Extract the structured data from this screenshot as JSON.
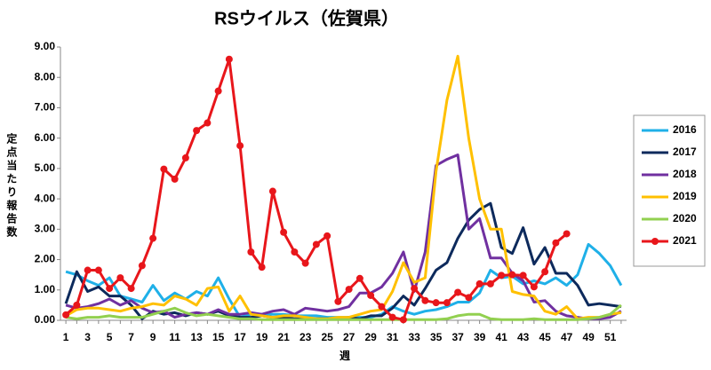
{
  "chart_data": {
    "type": "line",
    "title": "RSウイルス（佐賀県）",
    "x_label": "週",
    "y_label": "定点当たり報告数",
    "categories": [
      "1",
      null,
      "3",
      null,
      "5",
      null,
      "7",
      null,
      "9",
      null,
      "11",
      null,
      "13",
      null,
      "15",
      null,
      "17",
      null,
      "19",
      null,
      "21",
      null,
      "23",
      null,
      "25",
      null,
      "27",
      null,
      "29",
      null,
      "31",
      null,
      "33",
      null,
      "35",
      null,
      "37",
      null,
      "39",
      null,
      "41",
      null,
      "43",
      null,
      "45",
      null,
      "47",
      null,
      "49",
      null,
      "51",
      null
    ],
    "ylim": [
      0,
      9
    ],
    "yticks": [
      {
        "value": 0,
        "label": "0.00"
      },
      {
        "value": 1,
        "label": "1.00"
      },
      {
        "value": 2,
        "label": "2.00"
      },
      {
        "value": 3,
        "label": "3.00"
      },
      {
        "value": 4,
        "label": "4.00"
      },
      {
        "value": 5,
        "label": "5.00"
      },
      {
        "value": 6,
        "label": "6.00"
      },
      {
        "value": 7,
        "label": "7.00"
      },
      {
        "value": 8,
        "label": "8.00"
      },
      {
        "value": 9,
        "label": "9.00"
      }
    ],
    "grid": false,
    "legend": "right",
    "series": [
      {
        "name": "2016",
        "color": "#1fb0e8",
        "values": [
          1.6,
          1.5,
          1.3,
          1.15,
          1.4,
          0.8,
          0.7,
          0.6,
          1.15,
          0.65,
          0.9,
          0.7,
          0.95,
          0.8,
          1.4,
          0.7,
          0.1,
          0.2,
          0.2,
          0.2,
          0.2,
          0.15,
          0.15,
          0.15,
          0.1,
          0.1,
          0.1,
          0.1,
          0.1,
          0.2,
          0.45,
          0.3,
          0.2,
          0.3,
          0.35,
          0.45,
          0.6,
          0.6,
          0.9,
          1.65,
          1.4,
          1.45,
          1.2,
          1.3,
          1.2,
          1.4,
          1.15,
          1.5,
          2.5,
          2.2,
          1.8,
          1.15
        ]
      },
      {
        "name": "2017",
        "color": "#0d2a5c",
        "values": [
          0.55,
          1.6,
          0.95,
          1.1,
          0.8,
          0.8,
          0.5,
          0.05,
          0.3,
          0.2,
          0.25,
          0.15,
          0.25,
          0.2,
          0.3,
          0.15,
          0.1,
          0.1,
          0.15,
          0.1,
          0.1,
          0.05,
          0.05,
          0.05,
          0.05,
          0.05,
          0.1,
          0.05,
          0.15,
          0.15,
          0.4,
          0.8,
          0.5,
          1.05,
          1.65,
          1.9,
          2.7,
          3.3,
          3.65,
          3.85,
          2.4,
          2.2,
          3.05,
          1.85,
          2.4,
          1.55,
          1.55,
          1.15,
          0.5,
          0.55,
          0.5,
          0.45
        ]
      },
      {
        "name": "2018",
        "color": "#7030a0",
        "values": [
          0.5,
          0.4,
          0.45,
          0.55,
          0.7,
          0.5,
          0.65,
          0.4,
          0.25,
          0.3,
          0.1,
          0.2,
          0.25,
          0.2,
          0.35,
          0.2,
          0.2,
          0.25,
          0.2,
          0.3,
          0.35,
          0.2,
          0.4,
          0.35,
          0.3,
          0.35,
          0.45,
          0.9,
          0.9,
          1.1,
          1.55,
          2.25,
          0.95,
          2.25,
          5.1,
          5.3,
          5.45,
          3.0,
          3.35,
          2.05,
          2.05,
          1.55,
          1.3,
          0.6,
          0.65,
          0.3,
          0.15,
          0.1,
          0.05,
          0.05,
          0.1,
          0.3
        ]
      },
      {
        "name": "2019",
        "color": "#ffc000",
        "values": [
          0.15,
          0.35,
          0.4,
          0.4,
          0.35,
          0.3,
          0.4,
          0.45,
          0.55,
          0.5,
          0.8,
          0.7,
          0.5,
          1.05,
          1.1,
          0.3,
          0.8,
          0.2,
          0.15,
          0.1,
          0.15,
          0.15,
          0.1,
          0.05,
          0.05,
          0.1,
          0.1,
          0.2,
          0.3,
          0.35,
          0.95,
          1.9,
          1.25,
          1.4,
          4.9,
          7.25,
          8.7,
          6.0,
          4.0,
          3.0,
          3.0,
          0.95,
          0.85,
          0.8,
          0.3,
          0.2,
          0.45,
          0.05,
          0.1,
          0.1,
          0.2,
          0.25
        ]
      },
      {
        "name": "2020",
        "color": "#92d050",
        "values": [
          0.1,
          0.05,
          0.1,
          0.1,
          0.15,
          0.1,
          0.1,
          0.1,
          0.2,
          0.3,
          0.4,
          0.25,
          0.15,
          0.2,
          0.15,
          0.1,
          0.05,
          0.05,
          0.02,
          0.02,
          0.02,
          0.02,
          0.02,
          0.02,
          0.02,
          0.02,
          0.02,
          0.02,
          0.02,
          0.02,
          0.02,
          0.02,
          0.02,
          0.02,
          0.02,
          0.05,
          0.15,
          0.2,
          0.2,
          0.05,
          0.02,
          0.02,
          0.02,
          0.05,
          0.02,
          0.02,
          0.02,
          0.02,
          0.05,
          0.1,
          0.2,
          0.5
        ]
      },
      {
        "name": "2021",
        "color": "#e8161b",
        "marker": "circle",
        "values": [
          0.18,
          0.5,
          1.65,
          1.65,
          1.05,
          1.4,
          1.05,
          1.8,
          2.7,
          4.98,
          4.65,
          5.35,
          6.25,
          6.5,
          7.55,
          8.6,
          5.75,
          2.25,
          1.75,
          4.25,
          2.9,
          2.25,
          1.88,
          2.5,
          2.78,
          0.62,
          1.02,
          1.38,
          0.82,
          0.45,
          0.1,
          0.02,
          1.05,
          0.65,
          0.58,
          0.58,
          0.92,
          0.75,
          1.2,
          1.2,
          1.48,
          1.5,
          1.48,
          1.1,
          1.6,
          2.55,
          2.85,
          null,
          null,
          null,
          null,
          null
        ]
      }
    ]
  }
}
